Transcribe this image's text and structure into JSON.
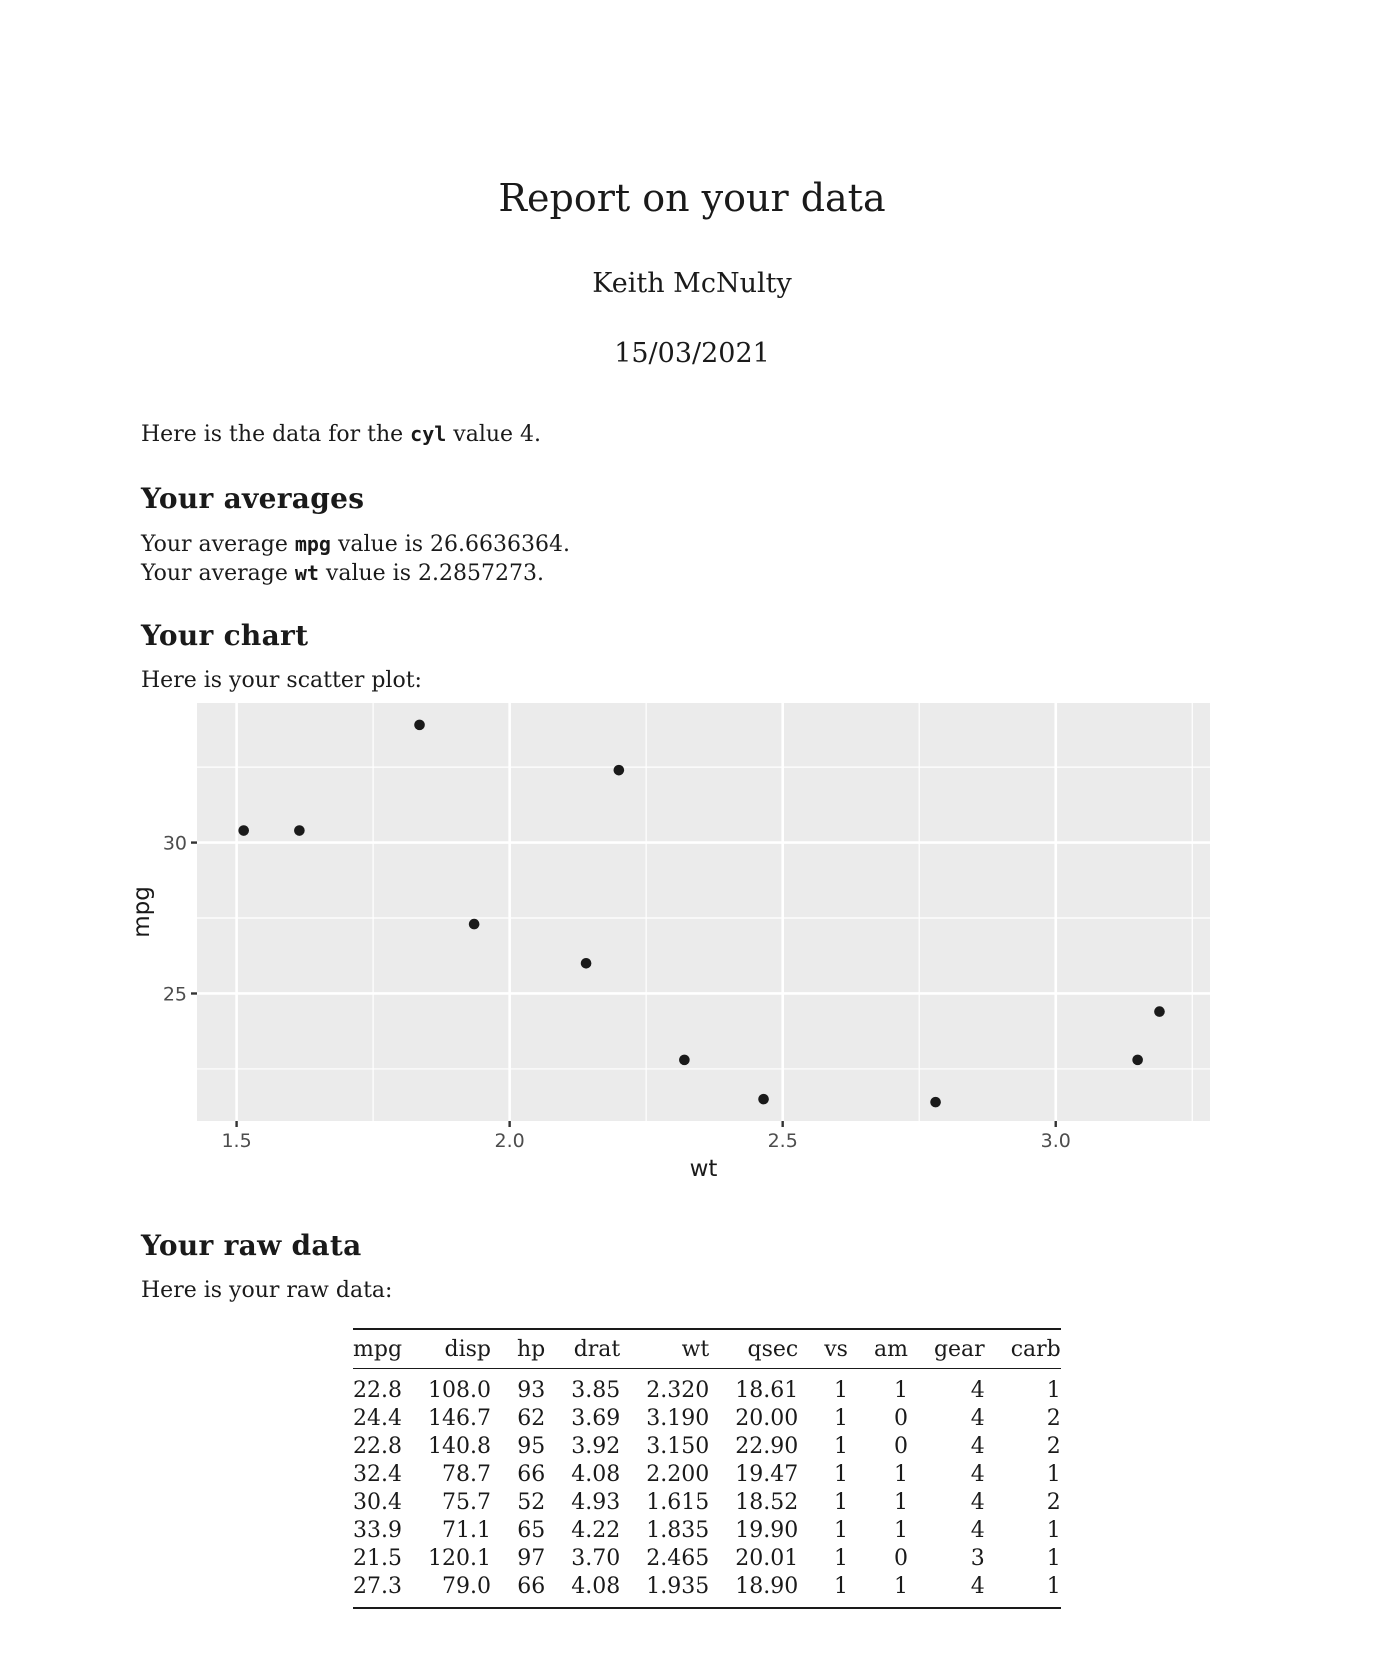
{
  "report": {
    "title": "Report on your data",
    "author": "Keith McNulty",
    "date": "15/03/2021"
  },
  "intro": {
    "prefix": "Here is the data for the ",
    "code": "cyl",
    "suffix": " value 4."
  },
  "averages": {
    "heading": "Your averages",
    "mpg_prefix": "Your average ",
    "mpg_code": "mpg",
    "mpg_suffix": " value is 26.6636364.",
    "wt_prefix": "Your average ",
    "wt_code": "wt",
    "wt_suffix": " value is 2.2857273."
  },
  "chart_section": {
    "heading": "Your chart",
    "intro": "Here is your scatter plot:"
  },
  "chart_data": {
    "type": "scatter",
    "title": "",
    "xlabel": "wt",
    "ylabel": "mpg",
    "xlim": [
      1.4275,
      3.2825
    ],
    "ylim": [
      20.775,
      34.625
    ],
    "xticks": [
      1.5,
      2.0,
      2.5,
      3.0
    ],
    "xtick_labels": [
      "1.5",
      "2.0",
      "2.5",
      "3.0"
    ],
    "yticks": [
      25,
      30
    ],
    "ytick_labels": [
      "25",
      "30"
    ],
    "grid": true,
    "points": [
      {
        "x": 2.32,
        "y": 22.8
      },
      {
        "x": 3.19,
        "y": 24.4
      },
      {
        "x": 3.15,
        "y": 22.8
      },
      {
        "x": 2.2,
        "y": 32.4
      },
      {
        "x": 1.615,
        "y": 30.4
      },
      {
        "x": 1.835,
        "y": 33.9
      },
      {
        "x": 2.465,
        "y": 21.5
      },
      {
        "x": 1.935,
        "y": 27.3
      },
      {
        "x": 2.14,
        "y": 26.0
      },
      {
        "x": 1.513,
        "y": 30.4
      },
      {
        "x": 2.78,
        "y": 21.4
      }
    ],
    "colors": {
      "panel": "#ebebeb",
      "grid": "#ffffff",
      "point": "#1a1a1a",
      "tick_text": "#4d4d4d"
    }
  },
  "raw_section": {
    "heading": "Your raw data",
    "intro": "Here is your raw data:"
  },
  "raw_table": {
    "columns": [
      "mpg",
      "disp",
      "hp",
      "drat",
      "wt",
      "qsec",
      "vs",
      "am",
      "gear",
      "carb"
    ],
    "rows": [
      [
        "22.8",
        "108.0",
        "93",
        "3.85",
        "2.320",
        "18.61",
        "1",
        "1",
        "4",
        "1"
      ],
      [
        "24.4",
        "146.7",
        "62",
        "3.69",
        "3.190",
        "20.00",
        "1",
        "0",
        "4",
        "2"
      ],
      [
        "22.8",
        "140.8",
        "95",
        "3.92",
        "3.150",
        "22.90",
        "1",
        "0",
        "4",
        "2"
      ],
      [
        "32.4",
        "78.7",
        "66",
        "4.08",
        "2.200",
        "19.47",
        "1",
        "1",
        "4",
        "1"
      ],
      [
        "30.4",
        "75.7",
        "52",
        "4.93",
        "1.615",
        "18.52",
        "1",
        "1",
        "4",
        "2"
      ],
      [
        "33.9",
        "71.1",
        "65",
        "4.22",
        "1.835",
        "19.90",
        "1",
        "1",
        "4",
        "1"
      ],
      [
        "21.5",
        "120.1",
        "97",
        "3.70",
        "2.465",
        "20.01",
        "1",
        "0",
        "3",
        "1"
      ],
      [
        "27.3",
        "79.0",
        "66",
        "4.08",
        "1.935",
        "18.90",
        "1",
        "1",
        "4",
        "1"
      ]
    ]
  }
}
